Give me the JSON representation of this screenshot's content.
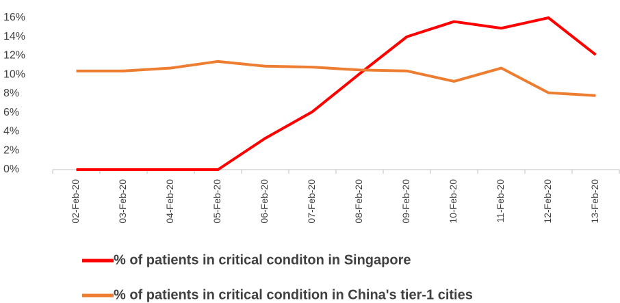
{
  "chart_data": {
    "type": "line",
    "categories": [
      "02-Feb-20",
      "03-Feb-20",
      "04-Feb-20",
      "05-Feb-20",
      "06-Feb-20",
      "07-Feb-20",
      "08-Feb-20",
      "09-Feb-20",
      "10-Feb-20",
      "11-Feb-20",
      "12-Feb-20",
      "13-Feb-20"
    ],
    "series": [
      {
        "name": "% of patients in critical conditon in Singapore",
        "color": "#ff0000",
        "values": [
          0,
          0,
          0,
          0,
          3.3,
          6.1,
          10.1,
          14.0,
          15.6,
          14.9,
          16.0,
          12.1
        ]
      },
      {
        "name": "% of patients in critical condition in China's tier-1 cities",
        "color": "#ed7d31",
        "values": [
          10.4,
          10.4,
          10.7,
          11.4,
          10.9,
          10.8,
          10.5,
          10.4,
          9.3,
          10.7,
          8.1,
          7.8
        ]
      }
    ],
    "ylim": [
      0,
      16
    ],
    "yticks": [
      {
        "value": 0,
        "label": "0%"
      },
      {
        "value": 2,
        "label": "2%"
      },
      {
        "value": 4,
        "label": "4%"
      },
      {
        "value": 6,
        "label": "6%"
      },
      {
        "value": 8,
        "label": "8%"
      },
      {
        "value": 10,
        "label": "10%"
      },
      {
        "value": 12,
        "label": "12%"
      },
      {
        "value": 14,
        "label": "14%"
      },
      {
        "value": 16,
        "label": "16%"
      }
    ],
    "grid": false,
    "legend": "bottom"
  }
}
